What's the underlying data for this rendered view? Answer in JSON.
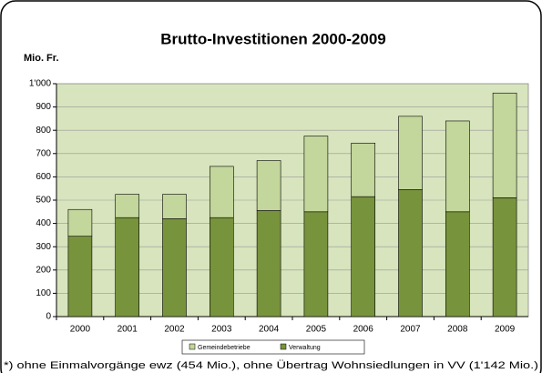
{
  "chart_data": {
    "type": "stacked_bar",
    "title": "Brutto-Investitionen 2000-2009",
    "y_label": "Mio. Fr.",
    "footnote": "*) ohne Einmalvorgänge ewz (454 Mio.), ohne Übertrag Wohnsiedlungen in VV (1'142 Mio.)",
    "categories": [
      "2000",
      "2001",
      "2002",
      "2003",
      "2004",
      "2005",
      "2006",
      "2007",
      "2008",
      "2009"
    ],
    "series": [
      {
        "name": "Gemeindebetriebe",
        "color": "#c3d69b",
        "values": [
          115,
          100,
          105,
          220,
          215,
          325,
          230,
          315,
          390,
          450
        ]
      },
      {
        "name": "Verwaltung",
        "color": "#77933c",
        "values": [
          345,
          425,
          420,
          425,
          455,
          450,
          515,
          545,
          450,
          510
        ]
      }
    ],
    "ylim": [
      0,
      1000
    ],
    "yticks": [
      0,
      100,
      200,
      300,
      400,
      500,
      600,
      700,
      800,
      900,
      {
        "value": 1000,
        "label": "1'000"
      }
    ],
    "grid": true,
    "legend": "bottom"
  }
}
